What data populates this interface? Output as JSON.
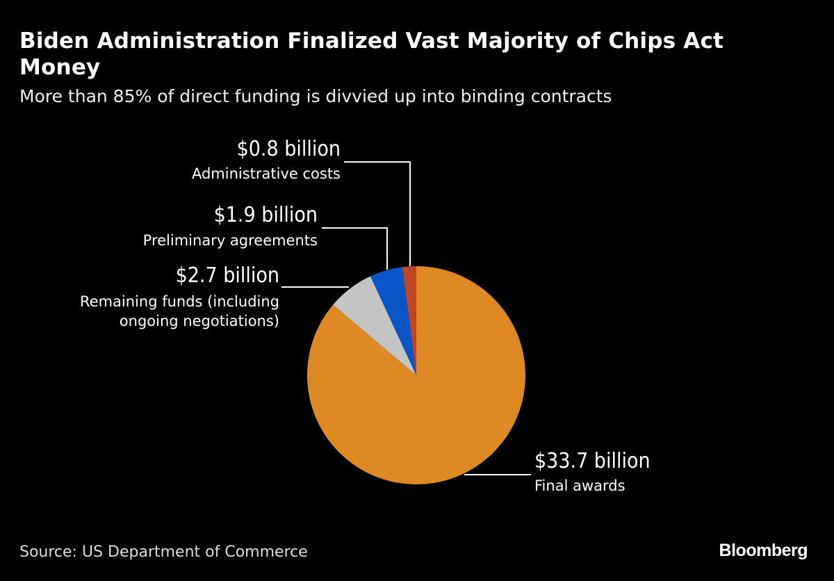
{
  "chart_data": {
    "type": "pie",
    "title": "Biden Administration Finalized Vast Majority of Chips Act Money",
    "subtitle": "More than 85% of direct funding is divvied up into binding contracts",
    "source": "Source: US Department of Commerce",
    "slices": [
      {
        "label": "Final awards",
        "value": 33.7,
        "value_label": "$33.7 billion",
        "color": "#dd8a25"
      },
      {
        "label": "Remaining funds (including ongoing negotiations)",
        "value": 2.7,
        "value_label": "$2.7 billion",
        "color": "#c4c4c4"
      },
      {
        "label": "Preliminary agreements",
        "value": 1.9,
        "value_label": "$1.9 billion",
        "color": "#0a55c8"
      },
      {
        "label": "Administrative costs",
        "value": 0.8,
        "value_label": "$0.8 billion",
        "color": "#c04520"
      }
    ],
    "unit": "billion USD",
    "start": "top, clockwise"
  },
  "brand": "Bloomberg"
}
